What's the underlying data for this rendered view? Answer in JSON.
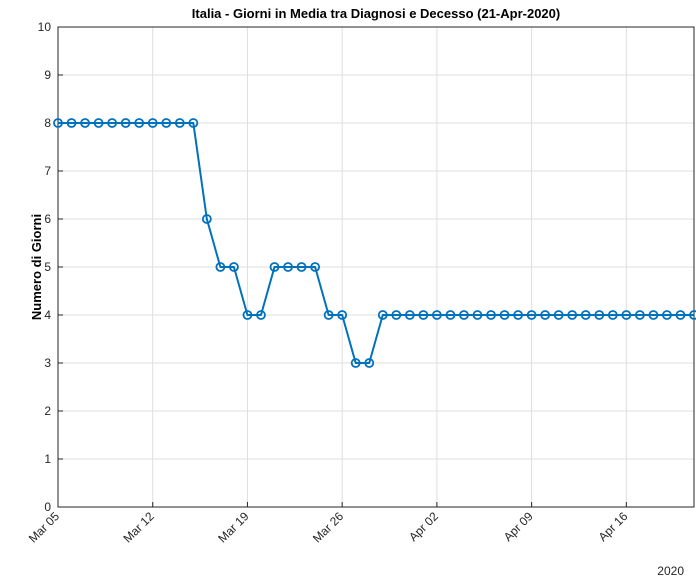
{
  "chart_data": {
    "type": "line",
    "title": "Italia - Giorni in Media tra Diagnosi e Decesso (21-Apr-2020)",
    "xlabel": "",
    "ylabel": "Numero di Giorni",
    "year_label": "2020",
    "x_tick_labels": [
      "Mar 05",
      "Mar 12",
      "Mar 19",
      "Mar 26",
      "Apr 02",
      "Apr 09",
      "Apr 16"
    ],
    "y_ticks": [
      0,
      1,
      2,
      3,
      4,
      5,
      6,
      7,
      8,
      9,
      10
    ],
    "ylim": [
      0,
      10
    ],
    "xlim": [
      "2020-03-05",
      "2020-04-21"
    ],
    "grid": true,
    "marker": "circle",
    "series": [
      {
        "color": "#0072BD",
        "x": [
          "2020-03-05",
          "2020-03-06",
          "2020-03-07",
          "2020-03-08",
          "2020-03-09",
          "2020-03-10",
          "2020-03-11",
          "2020-03-12",
          "2020-03-13",
          "2020-03-14",
          "2020-03-15",
          "2020-03-16",
          "2020-03-17",
          "2020-03-18",
          "2020-03-19",
          "2020-03-20",
          "2020-03-21",
          "2020-03-22",
          "2020-03-23",
          "2020-03-24",
          "2020-03-25",
          "2020-03-26",
          "2020-03-27",
          "2020-03-28",
          "2020-03-29",
          "2020-03-30",
          "2020-03-31",
          "2020-04-01",
          "2020-04-02",
          "2020-04-03",
          "2020-04-04",
          "2020-04-05",
          "2020-04-06",
          "2020-04-07",
          "2020-04-08",
          "2020-04-09",
          "2020-04-10",
          "2020-04-11",
          "2020-04-12",
          "2020-04-13",
          "2020-04-14",
          "2020-04-15",
          "2020-04-16",
          "2020-04-17",
          "2020-04-18",
          "2020-04-19",
          "2020-04-20",
          "2020-04-21"
        ],
        "values": [
          8,
          8,
          8,
          8,
          8,
          8,
          8,
          8,
          8,
          8,
          8,
          6,
          5,
          5,
          4,
          4,
          5,
          5,
          5,
          5,
          4,
          4,
          3,
          3,
          4,
          4,
          4,
          4,
          4,
          4,
          4,
          4,
          4,
          4,
          4,
          4,
          4,
          4,
          4,
          4,
          4,
          4,
          4,
          4,
          4,
          4,
          4,
          4
        ]
      }
    ]
  }
}
